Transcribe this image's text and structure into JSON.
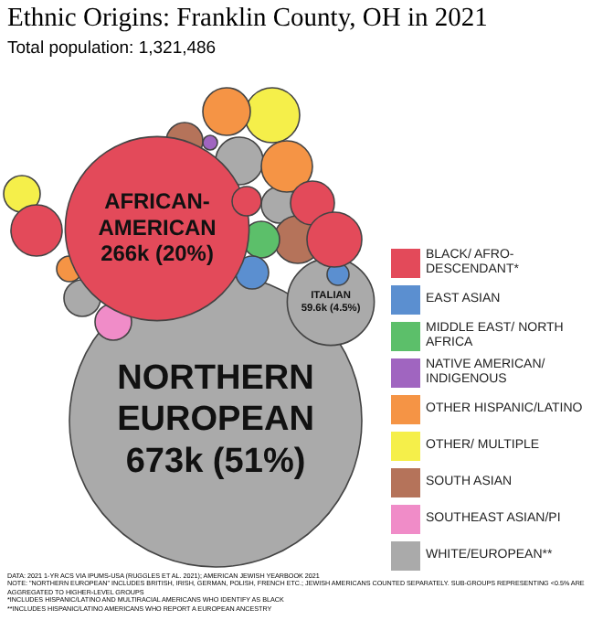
{
  "chart_data": {
    "type": "other",
    "title": "Ethnic Origins: Franklin County, OH in 2021",
    "subtitle": "Total population: 1,321,486",
    "legend": "right",
    "categories": [
      "AFRICAN-AMERICAN",
      null,
      null,
      null,
      null,
      null,
      null,
      null,
      null,
      null,
      null,
      null,
      null,
      null,
      null,
      null,
      null,
      null,
      "NORTHERN EUROPEAN",
      "ITALIAN",
      null,
      null,
      null
    ],
    "series": [
      {
        "name": "BLACK/ AFRO-DESCENDANT*",
        "color": "#e34a5a",
        "values": [
          266000,
          null,
          null,
          null,
          null,
          null,
          null,
          null,
          null,
          null,
          null,
          null,
          null,
          null,
          null,
          null,
          null,
          null,
          null,
          null,
          null,
          null,
          null
        ],
        "value_labels": [
          "266k (20%)",
          null,
          null,
          null,
          null,
          null,
          null,
          null,
          null,
          null,
          null,
          null,
          null,
          null,
          null,
          null,
          null,
          null,
          null,
          null,
          null,
          null,
          null
        ]
      },
      {
        "name": "EAST ASIAN",
        "color": "#5b8fd0",
        "values": [
          null,
          null,
          null,
          null,
          null,
          null,
          null,
          null,
          null,
          null,
          null,
          null,
          null,
          null,
          null,
          null,
          null,
          null,
          null,
          null,
          null,
          null,
          null
        ]
      },
      {
        "name": "MIDDLE EAST/ NORTH AFRICA",
        "color": "#5cbf6a",
        "values": [
          null,
          null,
          null,
          null,
          null,
          null,
          null,
          null,
          null,
          null,
          null,
          null,
          null,
          null,
          null,
          null,
          null,
          null,
          null,
          null,
          null,
          null,
          null
        ]
      },
      {
        "name": "NATIVE AMERICAN/ INDIGENOUS",
        "color": "#a065c0",
        "values": [
          null,
          null,
          null,
          null,
          null,
          null,
          null,
          null,
          null,
          null,
          null,
          null,
          null,
          null,
          null,
          null,
          null,
          null,
          null,
          null,
          null,
          null,
          null
        ]
      },
      {
        "name": "OTHER HISPANIC/LATINO",
        "color": "#f59445",
        "values": [
          null,
          null,
          null,
          null,
          null,
          null,
          null,
          null,
          null,
          null,
          null,
          null,
          null,
          null,
          null,
          null,
          null,
          null,
          null,
          null,
          null,
          null,
          null
        ]
      },
      {
        "name": "OTHER/ MULTIPLE",
        "color": "#f5ef4a",
        "values": [
          null,
          null,
          null,
          null,
          null,
          null,
          null,
          null,
          null,
          null,
          null,
          null,
          null,
          null,
          null,
          null,
          null,
          null,
          null,
          null,
          null,
          null,
          null
        ]
      },
      {
        "name": "SOUTH ASIAN",
        "color": "#b5735a",
        "values": [
          null,
          null,
          null,
          null,
          null,
          null,
          null,
          null,
          null,
          null,
          null,
          null,
          null,
          null,
          null,
          null,
          null,
          null,
          null,
          null,
          null,
          null,
          null
        ]
      },
      {
        "name": "SOUTHEAST ASIAN/PI",
        "color": "#f08cc8",
        "values": [
          null,
          null,
          null,
          null,
          null,
          null,
          null,
          null,
          null,
          null,
          null,
          null,
          null,
          null,
          null,
          null,
          null,
          null,
          null,
          null,
          null,
          null,
          null
        ]
      },
      {
        "name": "WHITE/EUROPEAN**",
        "color": "#aaaaaa",
        "values": [
          null,
          null,
          null,
          null,
          null,
          null,
          null,
          null,
          null,
          null,
          null,
          null,
          null,
          null,
          null,
          null,
          null,
          null,
          673000,
          59600,
          null,
          null,
          null
        ],
        "value_labels": [
          null,
          null,
          null,
          null,
          null,
          null,
          null,
          null,
          null,
          null,
          null,
          null,
          null,
          null,
          null,
          null,
          null,
          null,
          "673k (51%)",
          "59.6k (4.5%)",
          null,
          null,
          null
        ]
      }
    ],
    "annotations": [
      "DATA: 2021 1-YR ACS VIA IPUMS-USA (RUGGLES ET AL. 2021); AMERICAN JEWISH YEARBOOK 2021",
      "NOTE: \"NORTHERN EUROPEAN\" INCLUDES BRITISH, IRISH, GERMAN, POLISH, FRENCH ETC.; JEWISH AMERICANS COUNTED SEPARATELY. SUB-GROUPS REPRESENTING <0.5% ARE AGGREGATED TO HIGHER-LEVEL GROUPS",
      "*INCLUDES HISPANIC/LATINO AND MULTIRACIAL AMERICANS WHO IDENTIFY AS BLACK",
      "**INCLUDES HISPANIC/LATINO AMERICANS WHO REPORT A EUROPEAN ANCESTRY"
    ]
  }
}
